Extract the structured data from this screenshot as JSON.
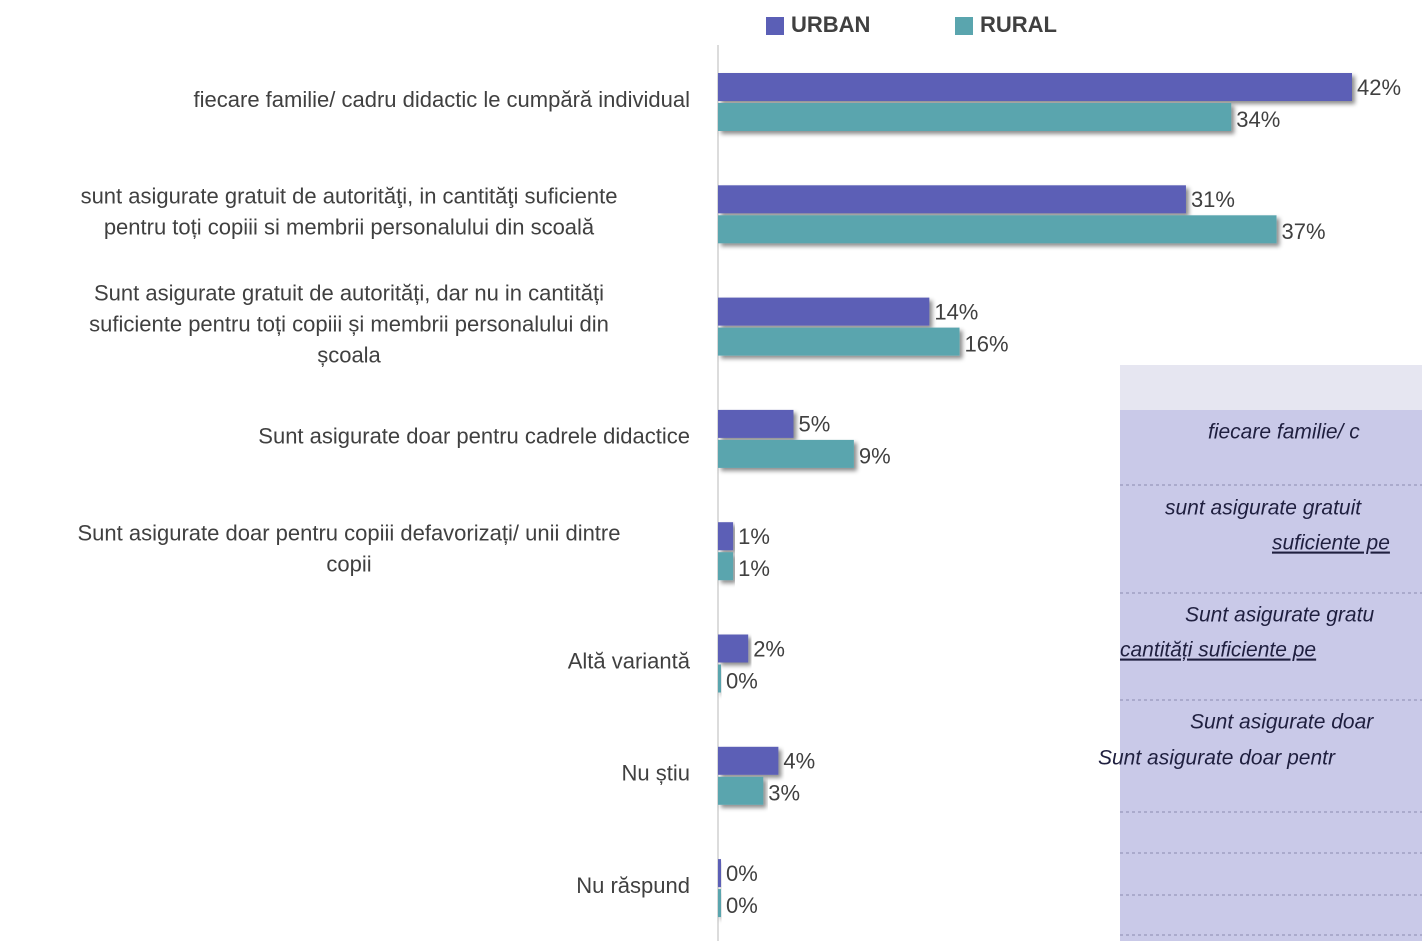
{
  "chart_data": {
    "type": "bar",
    "categories": [
      [
        "fiecare familie/ cadru didactic le cumpără individual"
      ],
      [
        "sunt asigurate gratuit de autorităţi, in cantităţi suficiente",
        "pentru toți copiii si membrii personalului din scoală"
      ],
      [
        "Sunt asigurate gratuit de autorități, dar nu in cantități",
        "suficiente pentru toți copiii și membrii personalului din",
        "școala"
      ],
      [
        "Sunt asigurate doar pentru cadrele didactice"
      ],
      [
        "Sunt asigurate doar pentru copiii defavorizați/ unii dintre",
        "copii"
      ],
      [
        "Altă variantă"
      ],
      [
        "Nu știu"
      ],
      [
        "Nu răspund"
      ]
    ],
    "series": [
      {
        "name": "URBAN",
        "color": "#5b5fb6",
        "values": [
          42,
          31,
          14,
          5,
          1,
          2,
          4,
          0
        ],
        "value_labels": [
          "42%",
          "31%",
          "14%",
          "5%",
          "1%",
          "2%",
          "4%",
          "0%"
        ]
      },
      {
        "name": "RURAL",
        "color": "#5aa5ae",
        "values": [
          34,
          37,
          16,
          9,
          1,
          0,
          3,
          0
        ],
        "value_labels": [
          "34%",
          "37%",
          "16%",
          "9%",
          "1%",
          "0%",
          "3%",
          "0%"
        ]
      }
    ],
    "legend": "top"
  },
  "table": {
    "lines": [
      "fiecare familie/ c",
      "sunt asigurate gratuit",
      "suficiente pe",
      "Sunt asigurate gratu",
      "cantități suficiente pe",
      "Sunt asigurate doar",
      "Sunt asigurate doar pentr"
    ]
  }
}
